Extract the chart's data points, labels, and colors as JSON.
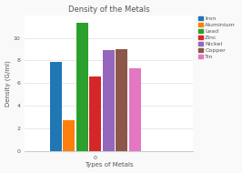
{
  "title": "Density of the Metals",
  "xlabel": "Types of Metals",
  "ylabel": "Density (G/ml)",
  "x_tick_label": "0",
  "metals": [
    "Iron",
    "Aluminium",
    "Lead",
    "Zinc",
    "Nickel",
    "Copper",
    "Tin"
  ],
  "densities": [
    7.87,
    2.7,
    11.34,
    6.57,
    8.91,
    8.96,
    7.31
  ],
  "colors": [
    "#1f77b4",
    "#ff7f0e",
    "#2ca02c",
    "#d62728",
    "#9467bd",
    "#8c564b",
    "#e377c2"
  ],
  "ylim": [
    0,
    12
  ],
  "yticks": [
    0,
    2,
    4,
    6,
    8,
    10
  ],
  "background_color": "#f9f9f9",
  "plot_bg": "#ffffff",
  "legend_labels": [
    "Iron",
    "Aluminium",
    "Lead",
    "Zinc",
    "Nickel",
    "Copper",
    "Tin"
  ],
  "title_fontsize": 6,
  "axis_label_fontsize": 5,
  "tick_fontsize": 4.5,
  "legend_fontsize": 4.5,
  "grid_color": "#e0e0e0"
}
